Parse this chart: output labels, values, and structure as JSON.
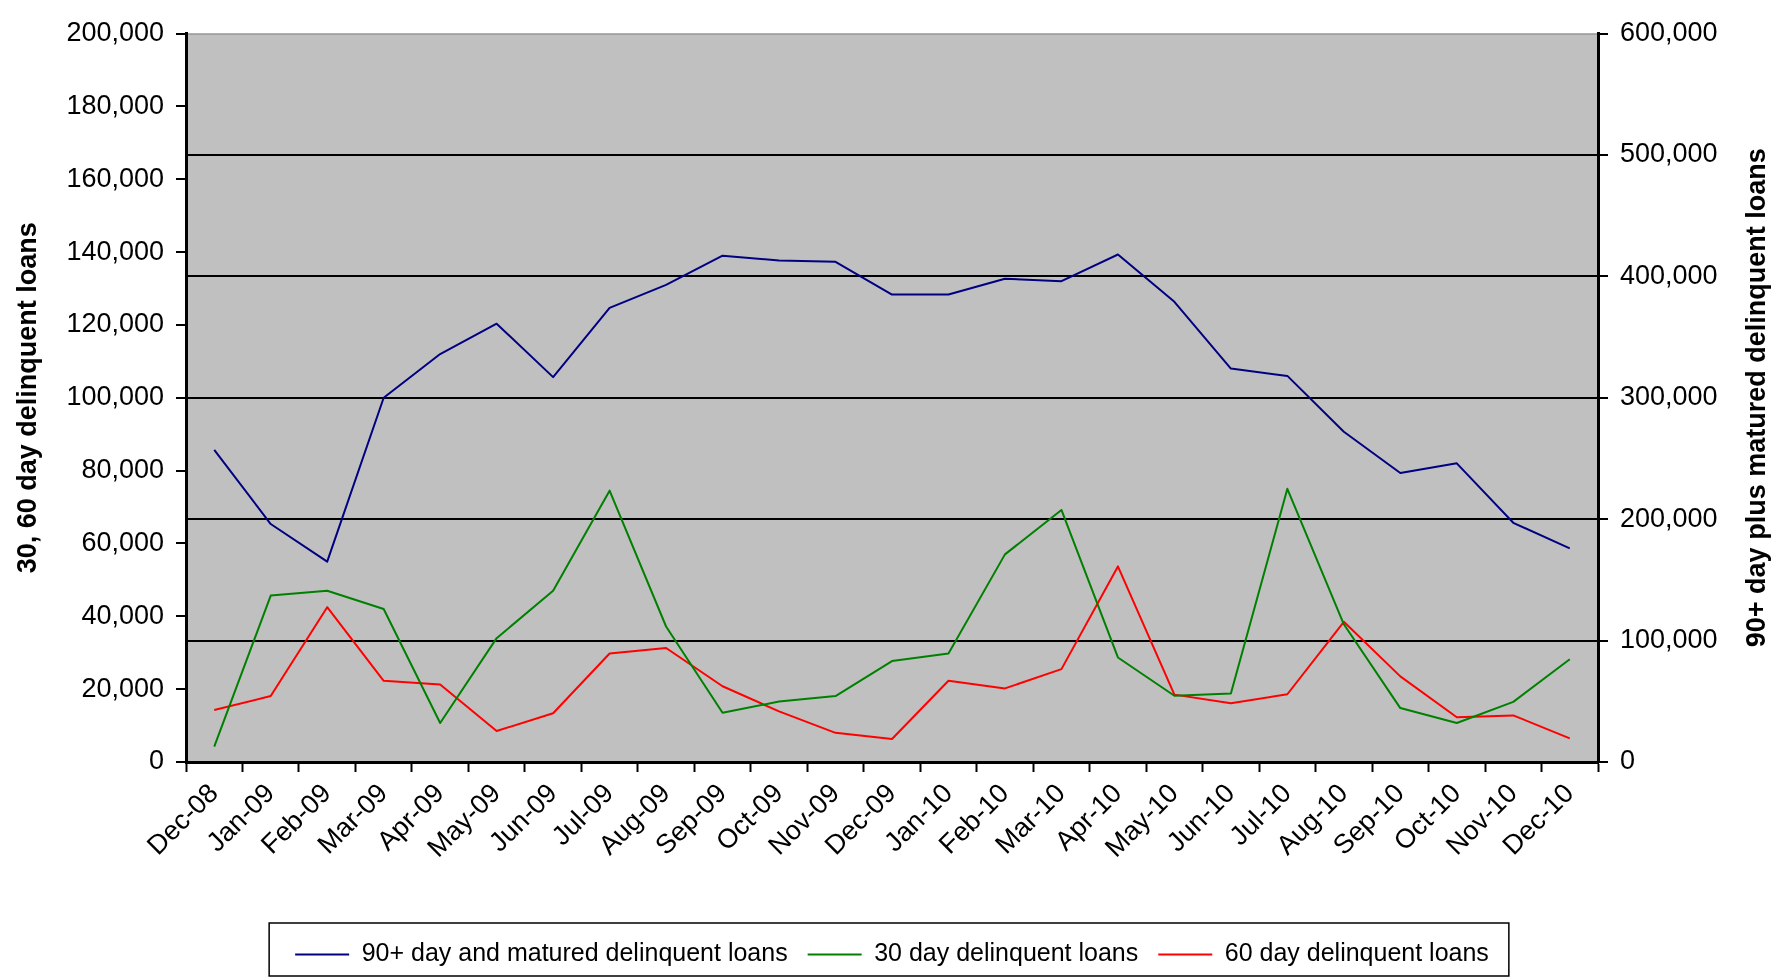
{
  "chart_data": {
    "type": "line",
    "ylabel": "30, 60 day delinquent loans",
    "y2label": "90+ day plus matured delinquent loans",
    "categories": [
      "Dec-08",
      "Jan-09",
      "Feb-09",
      "Mar-09",
      "Apr-09",
      "May-09",
      "Jun-09",
      "Jul-09",
      "Aug-09",
      "Sep-09",
      "Oct-09",
      "Nov-09",
      "Dec-09",
      "Jan-10",
      "Feb-10",
      "Mar-10",
      "Apr-10",
      "May-10",
      "Jun-10",
      "Jul-10",
      "Aug-10",
      "Sep-10",
      "Oct-10",
      "Nov-10",
      "Dec-10"
    ],
    "series": [
      {
        "name": "90+ day and matured delinquent loans",
        "color": "#000080",
        "axis": "y2",
        "values": [
          257000,
          196000,
          165000,
          300000,
          336000,
          361000,
          317000,
          374000,
          393000,
          417000,
          413000,
          412000,
          385000,
          385000,
          398000,
          396000,
          418000,
          379000,
          324000,
          318000,
          272000,
          238000,
          246000,
          197000,
          176000
        ]
      },
      {
        "name": "30 day delinquent loans",
        "color": "#008000",
        "values": [
          4200,
          45700,
          47000,
          42000,
          10700,
          34000,
          47000,
          74500,
          37200,
          13500,
          16600,
          18100,
          27700,
          29800,
          57000,
          69200,
          28700,
          18200,
          18800,
          75000,
          37800,
          14800,
          10700,
          16500,
          28200
        ]
      },
      {
        "name": "60 day delinquent loans",
        "color": "#ff0000",
        "values": [
          14300,
          18100,
          42500,
          22300,
          21300,
          8500,
          13400,
          29800,
          31300,
          20800,
          13900,
          8000,
          6300,
          22300,
          20200,
          25500,
          53700,
          18500,
          16100,
          18600,
          38500,
          23500,
          12300,
          12800,
          6500
        ]
      }
    ],
    "ylim": [
      0,
      200000
    ],
    "yticks": [
      0,
      {
        "value": 20000,
        "label": "20,000"
      },
      {
        "value": 40000,
        "label": "40,000"
      },
      {
        "value": 60000,
        "label": "60,000"
      },
      {
        "value": 80000,
        "label": "80,000"
      },
      {
        "value": 100000,
        "label": "100,000"
      },
      {
        "value": 120000,
        "label": "120,000"
      },
      {
        "value": 140000,
        "label": "140,000"
      },
      {
        "value": 160000,
        "label": "160,000"
      },
      {
        "value": 180000,
        "label": "180,000"
      },
      {
        "value": 200000,
        "label": "200,000"
      }
    ],
    "y2lim": [
      0,
      600000
    ],
    "y2ticks": [
      0,
      {
        "value": 100000,
        "label": "100,000"
      },
      {
        "value": 200000,
        "label": "200,000"
      },
      {
        "value": 300000,
        "label": "300,000"
      },
      {
        "value": 400000,
        "label": "400,000"
      },
      {
        "value": 500000,
        "label": "500,000"
      },
      {
        "value": 600000,
        "label": "600,000"
      }
    ],
    "grid": "y2",
    "legend": "bottom"
  }
}
